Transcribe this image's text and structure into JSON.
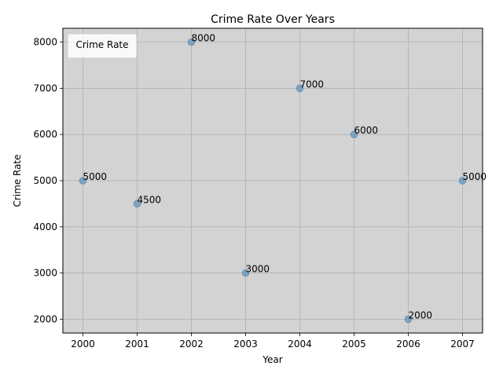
{
  "chart_data": {
    "type": "scatter",
    "title": "Crime Rate Over Years",
    "xlabel": "Year",
    "ylabel": "Crime Rate",
    "x": [
      2000,
      2001,
      2002,
      2003,
      2004,
      2005,
      2006,
      2007
    ],
    "y": [
      5000,
      4500,
      8000,
      3000,
      7000,
      6000,
      2000,
      5000
    ],
    "point_labels": [
      "5000",
      "4500",
      "8000",
      "3000",
      "7000",
      "6000",
      "2000",
      "5000"
    ],
    "xticks": [
      "2000",
      "2001",
      "2002",
      "2003",
      "2004",
      "2005",
      "2006",
      "2007"
    ],
    "yticks": [
      "2000",
      "3000",
      "4000",
      "5000",
      "6000",
      "7000",
      "8000"
    ],
    "xlim": [
      1999.63,
      2007.37
    ],
    "ylim": [
      1700,
      8300
    ],
    "legend_title": "Crime Rate",
    "legend_placement": "top-left",
    "grid": true,
    "colors": {
      "plot_background": "#d3d3d3",
      "marker": "#6f9bc0",
      "grid": "#b0b0b0"
    }
  }
}
